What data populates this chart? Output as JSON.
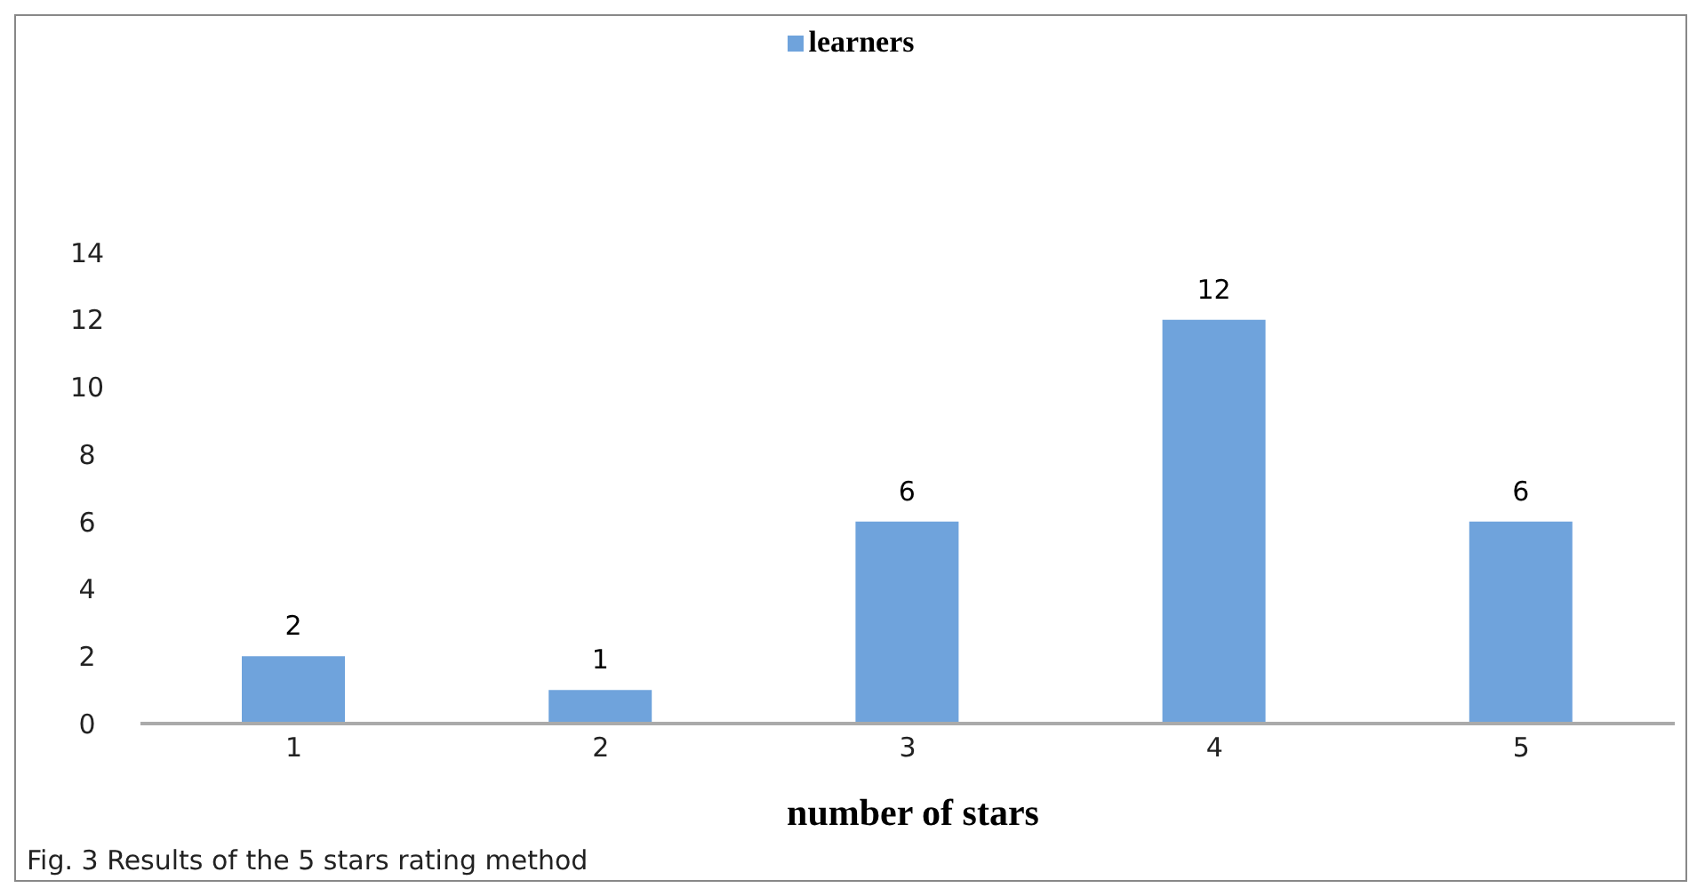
{
  "chart_data": {
    "type": "bar",
    "categories": [
      "1",
      "2",
      "3",
      "4",
      "5"
    ],
    "series": [
      {
        "name": "learners",
        "color": "#6fa3dc",
        "values": [
          2,
          1,
          6,
          12,
          6
        ]
      }
    ],
    "ylim": [
      0,
      14
    ],
    "yticks": [
      0,
      2,
      4,
      6,
      8,
      10,
      12,
      14
    ],
    "grid": false,
    "legend": "top",
    "data_labels": true,
    "xlabel": "number of stars",
    "annotations": [
      "Fig. 3 Results of the 5 stars rating method"
    ]
  }
}
